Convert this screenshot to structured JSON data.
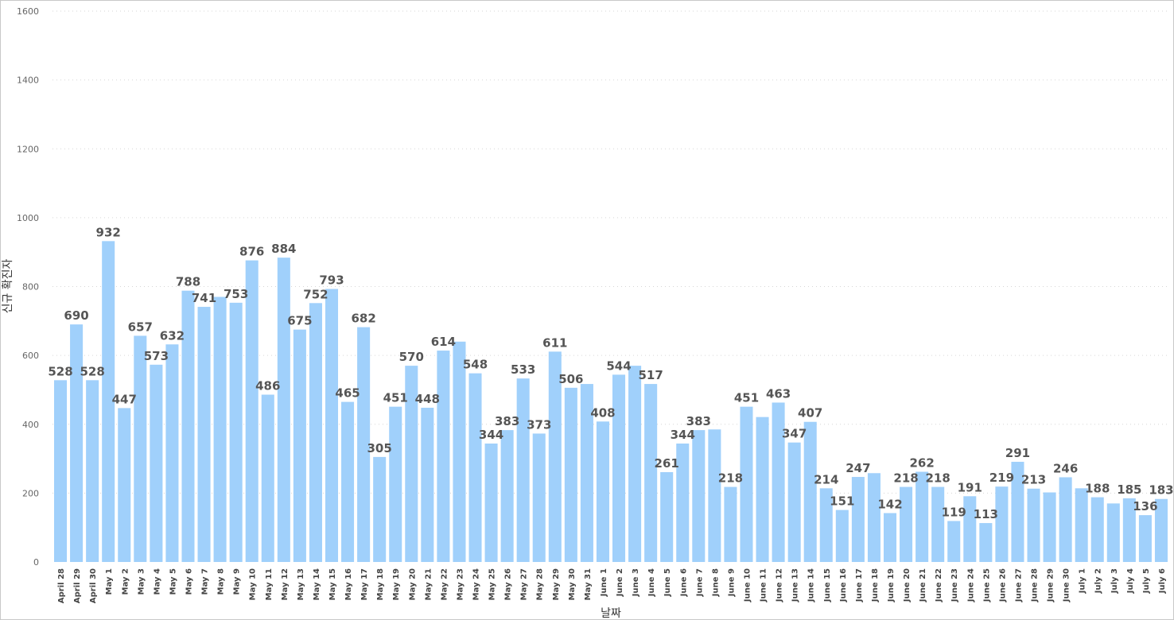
{
  "chart_data": {
    "type": "bar",
    "xlabel": "날짜",
    "ylabel": "신규 확진자",
    "ylim": [
      0,
      1600
    ],
    "yticks": [
      0,
      200,
      400,
      600,
      800,
      1000,
      1200,
      1400,
      1600
    ],
    "grid": true,
    "colors": {
      "bar": "#a0d0fb",
      "highlight": "#118dff"
    },
    "highlight_index": 70,
    "categories": [
      "April 28",
      "April 29",
      "April 30",
      "May 1",
      "May 2",
      "May 3",
      "May 4",
      "May 5",
      "May 6",
      "May 7",
      "May 8",
      "May 9",
      "May 10",
      "May 11",
      "May 12",
      "May 13",
      "May 14",
      "May 15",
      "May 16",
      "May 17",
      "May 18",
      "May 19",
      "May 20",
      "May 21",
      "May 22",
      "May 23",
      "May 24",
      "May 25",
      "May 26",
      "May 27",
      "May 28",
      "May 29",
      "May 30",
      "May 31",
      "June 1",
      "June 2",
      "June 3",
      "June 4",
      "June 5",
      "June 6",
      "June 7",
      "June 8",
      "June 9",
      "June 10",
      "June 11",
      "June 12",
      "June 13",
      "June 14",
      "June 15",
      "June 16",
      "June 17",
      "June 18",
      "June 19",
      "June 20",
      "June 21",
      "June 22",
      "June 23",
      "June 24",
      "June 25",
      "June 26",
      "June 27",
      "June 28",
      "June 29",
      "June 30",
      "July 1",
      "July 2",
      "July 3",
      "July 4",
      "July 5",
      "July 6"
    ],
    "values": [
      528,
      690,
      528,
      932,
      447,
      657,
      573,
      632,
      788,
      741,
      770,
      753,
      876,
      486,
      884,
      675,
      752,
      793,
      465,
      682,
      305,
      451,
      570,
      448,
      614,
      640,
      548,
      344,
      383,
      533,
      373,
      611,
      506,
      517,
      408,
      544,
      570,
      517,
      261,
      344,
      383,
      385,
      218,
      451,
      421,
      463,
      347,
      407,
      214,
      151,
      247,
      258,
      142,
      218,
      262,
      218,
      119,
      191,
      113,
      219,
      291,
      213,
      202,
      246,
      214,
      188,
      170,
      185,
      136,
      183
    ],
    "data_labels": [
      "528",
      "690",
      "528",
      "932",
      "447",
      "657",
      "573",
      "632",
      "788",
      "741",
      "",
      "753",
      "876",
      "486",
      "884",
      "675",
      "752",
      "793",
      "465",
      "682",
      "305",
      "451",
      "570",
      "448",
      "614",
      "",
      "548",
      "344",
      "383",
      "533",
      "373",
      "611",
      "506",
      "",
      "408",
      "544",
      "",
      "517",
      "261",
      "344",
      "383",
      "",
      "218",
      "451",
      "",
      "463",
      "347",
      "407",
      "214",
      "151",
      "247",
      "",
      "142",
      "218",
      "262",
      "218",
      "119",
      "191",
      "113",
      "219",
      "291",
      "213",
      "",
      "246",
      "",
      "188",
      "",
      "185",
      "136",
      "183"
    ]
  }
}
